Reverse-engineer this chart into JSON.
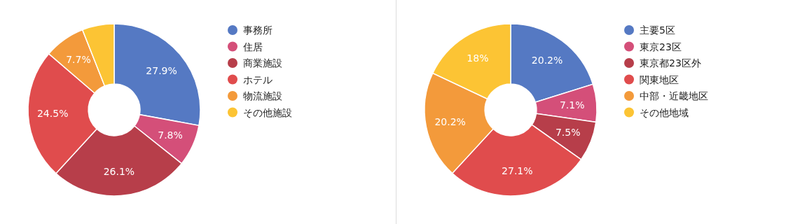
{
  "chart_data": [
    {
      "type": "donut",
      "categories": [
        "事務所",
        "住居",
        "商業施設",
        "ホテル",
        "物流施設",
        "その他施設"
      ],
      "values": [
        27.9,
        7.8,
        26.1,
        24.5,
        7.7,
        6.0
      ],
      "value_labels": [
        "27.9%",
        "7.8%",
        "26.1%",
        "24.5%",
        "7.7%",
        null
      ],
      "colors": [
        "#5579c3",
        "#d44f79",
        "#b73e4a",
        "#e04c4d",
        "#f39a3b",
        "#fcc434"
      ],
      "legend": "right"
    },
    {
      "type": "donut",
      "categories": [
        "主要5区",
        "東京23区",
        "東京都23区外",
        "関東地区",
        "中部・近畿地区",
        "その他地域"
      ],
      "values": [
        20.2,
        7.1,
        7.5,
        27.1,
        20.2,
        18
      ],
      "value_labels": [
        "20.2%",
        "7.1%",
        "7.5%",
        "27.1%",
        "20.2%",
        "18%"
      ],
      "colors": [
        "#5579c3",
        "#d44f79",
        "#b73e4a",
        "#e04c4d",
        "#f39a3b",
        "#fcc434"
      ],
      "legend": "right"
    }
  ]
}
